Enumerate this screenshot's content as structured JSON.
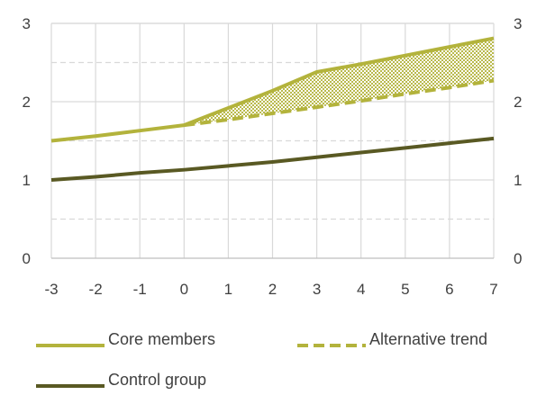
{
  "chart_data": {
    "type": "line",
    "title": "",
    "xlabel": "",
    "ylabel": "",
    "x": [
      -3,
      -2,
      -1,
      0,
      1,
      2,
      3,
      4,
      5,
      6,
      7
    ],
    "xlim": [
      -3,
      7
    ],
    "ylim": [
      0,
      3
    ],
    "y_ticks": [
      0,
      1,
      2,
      3
    ],
    "y2_ticks": [
      0,
      1,
      2,
      3
    ],
    "grid": "dashed horizontal every 0.5",
    "legend_position": "bottom",
    "series": [
      {
        "name": "Core members",
        "style": "solid",
        "color": "#b3b33c",
        "x": [
          -3,
          -2,
          -1,
          0,
          1,
          2,
          3,
          4,
          5,
          6,
          7
        ],
        "values": [
          1.5,
          1.56,
          1.63,
          1.7,
          1.92,
          2.14,
          2.38,
          2.48,
          2.59,
          2.7,
          2.81
        ]
      },
      {
        "name": "Alternative trend",
        "style": "dashed",
        "color": "#b3b33c",
        "x": [
          0,
          1,
          2,
          3,
          4,
          5,
          6,
          7
        ],
        "values": [
          1.7,
          1.77,
          1.85,
          1.93,
          2.01,
          2.1,
          2.18,
          2.27
        ]
      },
      {
        "name": "Control group",
        "style": "solid",
        "color": "#595923",
        "x": [
          -3,
          -2,
          -1,
          0,
          1,
          2,
          3,
          4,
          5,
          6,
          7
        ],
        "values": [
          1.0,
          1.04,
          1.09,
          1.13,
          1.18,
          1.23,
          1.29,
          1.35,
          1.41,
          1.47,
          1.53
        ]
      }
    ],
    "shaded_area": "between Core members and Alternative trend from x=0 to x=7 (dotted fill)"
  }
}
